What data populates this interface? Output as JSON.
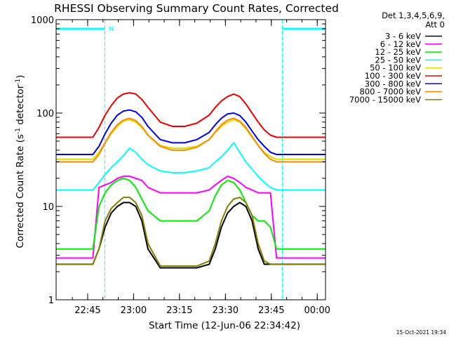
{
  "chart_data": {
    "type": "line",
    "title": "RHESSI Observing Summary Count Rates, Corrected",
    "xlabel": "Start Time (12-Jun-06 22:34:42)",
    "ylabel_main": "Corrected Count Rate (s",
    "ylabel_sup1": "-1",
    "ylabel_mid": " detector",
    "ylabel_sup2": "-1",
    "ylabel_end": ")",
    "yscale": "log",
    "ylim": [
      1,
      1000
    ],
    "yticks": [
      1,
      10,
      100,
      1000
    ],
    "ytick_labels": [
      "1",
      "10",
      "100",
      "1000"
    ],
    "xlim_minutes": [
      0,
      88
    ],
    "xticks_minutes": [
      10.3,
      25.3,
      40.3,
      55.3,
      70.3,
      85.3
    ],
    "xtick_labels": [
      "22:45",
      "23:00",
      "23:15",
      "23:30",
      "23:45",
      "00:00"
    ],
    "grid": false,
    "legend_placement": "right-outside",
    "legend_header": [
      "Det 1,3,4,5,6,9,",
      "Att 0"
    ],
    "night_marks_minutes": [
      {
        "from": 0,
        "to": 15.9,
        "label": "N"
      },
      {
        "from": 73.9,
        "to": 88,
        "label": ""
      }
    ],
    "x": [
      0,
      12,
      14,
      16,
      18,
      20,
      22,
      24,
      26,
      28,
      30,
      34,
      38,
      42,
      46,
      50,
      52,
      54,
      56,
      58,
      60,
      62,
      64,
      66,
      68,
      70,
      72,
      74,
      76,
      88
    ],
    "series": [
      {
        "name": "3 - 6 keV",
        "color": "#000000",
        "values": [
          2.4,
          2.4,
          3.5,
          6,
          8.5,
          10,
          11,
          11,
          10,
          7,
          3.5,
          2.2,
          2.2,
          2.2,
          2.2,
          2.4,
          3.5,
          6,
          8.5,
          10,
          11,
          10,
          7,
          3.5,
          2.4,
          2.4,
          2.4,
          2.4,
          2.4,
          2.4
        ]
      },
      {
        "name": "6 - 12 keV",
        "color": "#ff00ff",
        "values": [
          2.8,
          2.8,
          16,
          17,
          18,
          20,
          21,
          21,
          20,
          19,
          16,
          14,
          14,
          14,
          14,
          15,
          17,
          19,
          21,
          20,
          18,
          16,
          15,
          14,
          14,
          14,
          2.8,
          2.8,
          2.8,
          2.8
        ]
      },
      {
        "name": "12 - 25 keV",
        "color": "#00ee00",
        "values": [
          3.5,
          3.5,
          10,
          14,
          17,
          19,
          20,
          19,
          16,
          12,
          9,
          7,
          7,
          7,
          7,
          9,
          13,
          17,
          19,
          18,
          15,
          11,
          8,
          7,
          7,
          6,
          3.5,
          3.5,
          3.5,
          3.5
        ]
      },
      {
        "name": "25 - 50 keV",
        "color": "#00ffff",
        "values": [
          15,
          15,
          18,
          22,
          26,
          30,
          35,
          42,
          38,
          32,
          28,
          24,
          23,
          23,
          24,
          26,
          30,
          34,
          40,
          48,
          38,
          30,
          25,
          21,
          18,
          16,
          15,
          15,
          15,
          15
        ]
      },
      {
        "name": "50 - 100 keV",
        "color": "#dddd00",
        "values": [
          32,
          32,
          38,
          48,
          60,
          72,
          82,
          85,
          80,
          70,
          58,
          45,
          42,
          42,
          44,
          52,
          62,
          72,
          80,
          85,
          80,
          68,
          55,
          45,
          38,
          34,
          32,
          32,
          32,
          32
        ]
      },
      {
        "name": "100 - 300 keV",
        "color": "#ee0000",
        "values": [
          55,
          55,
          70,
          95,
          120,
          145,
          160,
          165,
          160,
          140,
          115,
          80,
          72,
          72,
          78,
          95,
          115,
          135,
          150,
          160,
          150,
          125,
          100,
          80,
          66,
          58,
          55,
          55,
          55,
          55
        ]
      },
      {
        "name": "300 - 800 keV",
        "color": "#0000ee",
        "values": [
          36,
          36,
          44,
          60,
          78,
          95,
          105,
          108,
          103,
          90,
          72,
          52,
          48,
          48,
          52,
          62,
          75,
          88,
          98,
          100,
          94,
          80,
          64,
          52,
          44,
          38,
          36,
          36,
          36,
          36
        ]
      },
      {
        "name": "800 - 7000 keV",
        "color": "#ff8800",
        "values": [
          30,
          30,
          36,
          48,
          62,
          75,
          84,
          88,
          83,
          72,
          58,
          44,
          40,
          40,
          43,
          52,
          63,
          75,
          84,
          88,
          82,
          70,
          56,
          45,
          37,
          32,
          30,
          30,
          30,
          30
        ]
      },
      {
        "name": "7000 - 15000 keV",
        "color": "#808000",
        "values": [
          2.4,
          2.4,
          3.5,
          7,
          9.5,
          11,
          12.5,
          12.5,
          11,
          8,
          4,
          2.3,
          2.3,
          2.3,
          2.3,
          2.6,
          4,
          7,
          10,
          12,
          12.5,
          11,
          8,
          4,
          2.6,
          2.4,
          2.4,
          2.4,
          2.4,
          2.4
        ]
      }
    ]
  },
  "footer_timestamp": "15-Oct-2021 19:34"
}
